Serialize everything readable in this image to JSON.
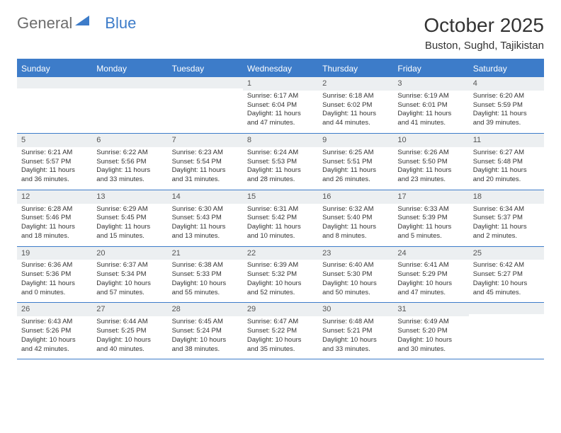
{
  "logo": {
    "part1": "General",
    "part2": "Blue"
  },
  "title": "October 2025",
  "location": "Buston, Sughd, Tajikistan",
  "colors": {
    "brand_blue": "#3d7cc9",
    "header_text": "#ffffff",
    "daynum_bg": "#eceff1",
    "body_text": "#333333",
    "logo_gray": "#6d6d6d"
  },
  "weekdays": [
    "Sunday",
    "Monday",
    "Tuesday",
    "Wednesday",
    "Thursday",
    "Friday",
    "Saturday"
  ],
  "weeks": [
    [
      {
        "day": "",
        "sunrise": "",
        "sunset": "",
        "daylight1": "",
        "daylight2": ""
      },
      {
        "day": "",
        "sunrise": "",
        "sunset": "",
        "daylight1": "",
        "daylight2": ""
      },
      {
        "day": "",
        "sunrise": "",
        "sunset": "",
        "daylight1": "",
        "daylight2": ""
      },
      {
        "day": "1",
        "sunrise": "Sunrise: 6:17 AM",
        "sunset": "Sunset: 6:04 PM",
        "daylight1": "Daylight: 11 hours",
        "daylight2": "and 47 minutes."
      },
      {
        "day": "2",
        "sunrise": "Sunrise: 6:18 AM",
        "sunset": "Sunset: 6:02 PM",
        "daylight1": "Daylight: 11 hours",
        "daylight2": "and 44 minutes."
      },
      {
        "day": "3",
        "sunrise": "Sunrise: 6:19 AM",
        "sunset": "Sunset: 6:01 PM",
        "daylight1": "Daylight: 11 hours",
        "daylight2": "and 41 minutes."
      },
      {
        "day": "4",
        "sunrise": "Sunrise: 6:20 AM",
        "sunset": "Sunset: 5:59 PM",
        "daylight1": "Daylight: 11 hours",
        "daylight2": "and 39 minutes."
      }
    ],
    [
      {
        "day": "5",
        "sunrise": "Sunrise: 6:21 AM",
        "sunset": "Sunset: 5:57 PM",
        "daylight1": "Daylight: 11 hours",
        "daylight2": "and 36 minutes."
      },
      {
        "day": "6",
        "sunrise": "Sunrise: 6:22 AM",
        "sunset": "Sunset: 5:56 PM",
        "daylight1": "Daylight: 11 hours",
        "daylight2": "and 33 minutes."
      },
      {
        "day": "7",
        "sunrise": "Sunrise: 6:23 AM",
        "sunset": "Sunset: 5:54 PM",
        "daylight1": "Daylight: 11 hours",
        "daylight2": "and 31 minutes."
      },
      {
        "day": "8",
        "sunrise": "Sunrise: 6:24 AM",
        "sunset": "Sunset: 5:53 PM",
        "daylight1": "Daylight: 11 hours",
        "daylight2": "and 28 minutes."
      },
      {
        "day": "9",
        "sunrise": "Sunrise: 6:25 AM",
        "sunset": "Sunset: 5:51 PM",
        "daylight1": "Daylight: 11 hours",
        "daylight2": "and 26 minutes."
      },
      {
        "day": "10",
        "sunrise": "Sunrise: 6:26 AM",
        "sunset": "Sunset: 5:50 PM",
        "daylight1": "Daylight: 11 hours",
        "daylight2": "and 23 minutes."
      },
      {
        "day": "11",
        "sunrise": "Sunrise: 6:27 AM",
        "sunset": "Sunset: 5:48 PM",
        "daylight1": "Daylight: 11 hours",
        "daylight2": "and 20 minutes."
      }
    ],
    [
      {
        "day": "12",
        "sunrise": "Sunrise: 6:28 AM",
        "sunset": "Sunset: 5:46 PM",
        "daylight1": "Daylight: 11 hours",
        "daylight2": "and 18 minutes."
      },
      {
        "day": "13",
        "sunrise": "Sunrise: 6:29 AM",
        "sunset": "Sunset: 5:45 PM",
        "daylight1": "Daylight: 11 hours",
        "daylight2": "and 15 minutes."
      },
      {
        "day": "14",
        "sunrise": "Sunrise: 6:30 AM",
        "sunset": "Sunset: 5:43 PM",
        "daylight1": "Daylight: 11 hours",
        "daylight2": "and 13 minutes."
      },
      {
        "day": "15",
        "sunrise": "Sunrise: 6:31 AM",
        "sunset": "Sunset: 5:42 PM",
        "daylight1": "Daylight: 11 hours",
        "daylight2": "and 10 minutes."
      },
      {
        "day": "16",
        "sunrise": "Sunrise: 6:32 AM",
        "sunset": "Sunset: 5:40 PM",
        "daylight1": "Daylight: 11 hours",
        "daylight2": "and 8 minutes."
      },
      {
        "day": "17",
        "sunrise": "Sunrise: 6:33 AM",
        "sunset": "Sunset: 5:39 PM",
        "daylight1": "Daylight: 11 hours",
        "daylight2": "and 5 minutes."
      },
      {
        "day": "18",
        "sunrise": "Sunrise: 6:34 AM",
        "sunset": "Sunset: 5:37 PM",
        "daylight1": "Daylight: 11 hours",
        "daylight2": "and 2 minutes."
      }
    ],
    [
      {
        "day": "19",
        "sunrise": "Sunrise: 6:36 AM",
        "sunset": "Sunset: 5:36 PM",
        "daylight1": "Daylight: 11 hours",
        "daylight2": "and 0 minutes."
      },
      {
        "day": "20",
        "sunrise": "Sunrise: 6:37 AM",
        "sunset": "Sunset: 5:34 PM",
        "daylight1": "Daylight: 10 hours",
        "daylight2": "and 57 minutes."
      },
      {
        "day": "21",
        "sunrise": "Sunrise: 6:38 AM",
        "sunset": "Sunset: 5:33 PM",
        "daylight1": "Daylight: 10 hours",
        "daylight2": "and 55 minutes."
      },
      {
        "day": "22",
        "sunrise": "Sunrise: 6:39 AM",
        "sunset": "Sunset: 5:32 PM",
        "daylight1": "Daylight: 10 hours",
        "daylight2": "and 52 minutes."
      },
      {
        "day": "23",
        "sunrise": "Sunrise: 6:40 AM",
        "sunset": "Sunset: 5:30 PM",
        "daylight1": "Daylight: 10 hours",
        "daylight2": "and 50 minutes."
      },
      {
        "day": "24",
        "sunrise": "Sunrise: 6:41 AM",
        "sunset": "Sunset: 5:29 PM",
        "daylight1": "Daylight: 10 hours",
        "daylight2": "and 47 minutes."
      },
      {
        "day": "25",
        "sunrise": "Sunrise: 6:42 AM",
        "sunset": "Sunset: 5:27 PM",
        "daylight1": "Daylight: 10 hours",
        "daylight2": "and 45 minutes."
      }
    ],
    [
      {
        "day": "26",
        "sunrise": "Sunrise: 6:43 AM",
        "sunset": "Sunset: 5:26 PM",
        "daylight1": "Daylight: 10 hours",
        "daylight2": "and 42 minutes."
      },
      {
        "day": "27",
        "sunrise": "Sunrise: 6:44 AM",
        "sunset": "Sunset: 5:25 PM",
        "daylight1": "Daylight: 10 hours",
        "daylight2": "and 40 minutes."
      },
      {
        "day": "28",
        "sunrise": "Sunrise: 6:45 AM",
        "sunset": "Sunset: 5:24 PM",
        "daylight1": "Daylight: 10 hours",
        "daylight2": "and 38 minutes."
      },
      {
        "day": "29",
        "sunrise": "Sunrise: 6:47 AM",
        "sunset": "Sunset: 5:22 PM",
        "daylight1": "Daylight: 10 hours",
        "daylight2": "and 35 minutes."
      },
      {
        "day": "30",
        "sunrise": "Sunrise: 6:48 AM",
        "sunset": "Sunset: 5:21 PM",
        "daylight1": "Daylight: 10 hours",
        "daylight2": "and 33 minutes."
      },
      {
        "day": "31",
        "sunrise": "Sunrise: 6:49 AM",
        "sunset": "Sunset: 5:20 PM",
        "daylight1": "Daylight: 10 hours",
        "daylight2": "and 30 minutes."
      },
      {
        "day": "",
        "sunrise": "",
        "sunset": "",
        "daylight1": "",
        "daylight2": ""
      }
    ]
  ]
}
